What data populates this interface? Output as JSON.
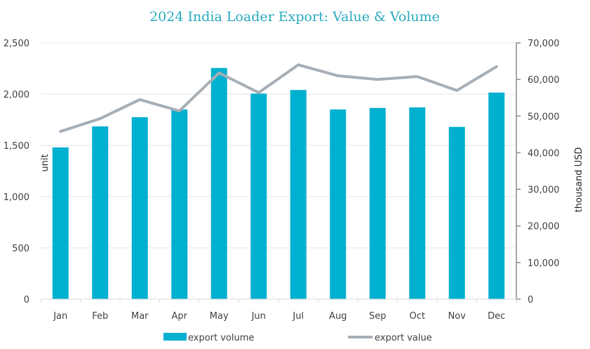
{
  "chart_data": {
    "type": "bar",
    "title": "2024 India Loader Export: Value & Volume",
    "categories": [
      "Jan",
      "Feb",
      "Mar",
      "Apr",
      "May",
      "Jun",
      "Jul",
      "Aug",
      "Sep",
      "Oct",
      "Nov",
      "Dec"
    ],
    "series": [
      {
        "name": "export volume",
        "type": "bar",
        "axis": "left",
        "color": "#00b0d0",
        "values": [
          1480,
          1685,
          1775,
          1850,
          2255,
          2005,
          2040,
          1850,
          1865,
          1870,
          1680,
          2015
        ]
      },
      {
        "name": "export value",
        "type": "line",
        "axis": "right",
        "color": "#a6aeb6",
        "values": [
          45800,
          49300,
          54500,
          51400,
          61800,
          56400,
          64000,
          61000,
          60000,
          60800,
          57000,
          63500
        ]
      }
    ],
    "y_left": {
      "label": "unit",
      "range": [
        0,
        2500
      ],
      "ticks": [
        0,
        500,
        1000,
        1500,
        2000,
        2500
      ],
      "tick_labels": [
        "0",
        "500",
        "1,000",
        "1,500",
        "2,000",
        "2,500"
      ]
    },
    "y_right": {
      "label": "thousand USD",
      "range": [
        0,
        70000
      ],
      "ticks": [
        0,
        10000,
        20000,
        30000,
        40000,
        50000,
        60000,
        70000
      ],
      "tick_labels": [
        "0",
        "10,000",
        "20,000",
        "30,000",
        "40,000",
        "50,000",
        "60,000",
        "70,000"
      ]
    },
    "xlabel": "",
    "grid": true,
    "legend": {
      "position": "bottom",
      "entries": [
        "export volume",
        "export value"
      ]
    }
  }
}
